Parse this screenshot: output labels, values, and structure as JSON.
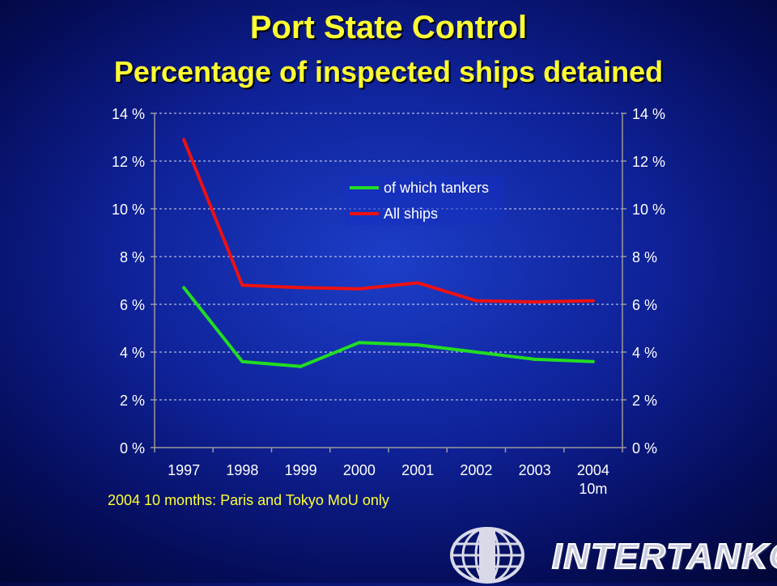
{
  "title": "Port State Control",
  "subtitle": "Percentage of inspected ships detained",
  "footnote": "2004 10 months: Paris and Tokyo MoU only",
  "brand": "INTERTANKO",
  "chart_data": {
    "type": "line",
    "categories": [
      "1997",
      "1998",
      "1999",
      "2000",
      "2001",
      "2002",
      "2003",
      "2004"
    ],
    "category_labels": [
      [
        "1997"
      ],
      [
        "1998"
      ],
      [
        "1999"
      ],
      [
        "2000"
      ],
      [
        "2001"
      ],
      [
        "2002"
      ],
      [
        "2003"
      ],
      [
        "2004",
        "10m"
      ]
    ],
    "series": [
      {
        "name": "of which tankers",
        "color": "#22dd22",
        "values": [
          6.7,
          3.6,
          3.4,
          4.4,
          4.3,
          4.0,
          3.7,
          3.6
        ]
      },
      {
        "name": "All ships",
        "color": "#ee1111",
        "values": [
          12.9,
          6.8,
          6.7,
          6.65,
          6.9,
          6.15,
          6.1,
          6.15
        ]
      }
    ],
    "ylim": [
      0,
      14
    ],
    "yticks": [
      0,
      2,
      4,
      6,
      8,
      10,
      12,
      14
    ],
    "ytick_labels": [
      "0 %",
      "2 %",
      "4 %",
      "6 %",
      "8 %",
      "10 %",
      "12 %",
      "14 %"
    ],
    "y_axis_right": true,
    "grid": true,
    "legend_position": "upper-center"
  },
  "colors": {
    "title": "#ffff33",
    "text": "#ffffff",
    "gridline": "#ffffff"
  },
  "logo": "globe-logo"
}
